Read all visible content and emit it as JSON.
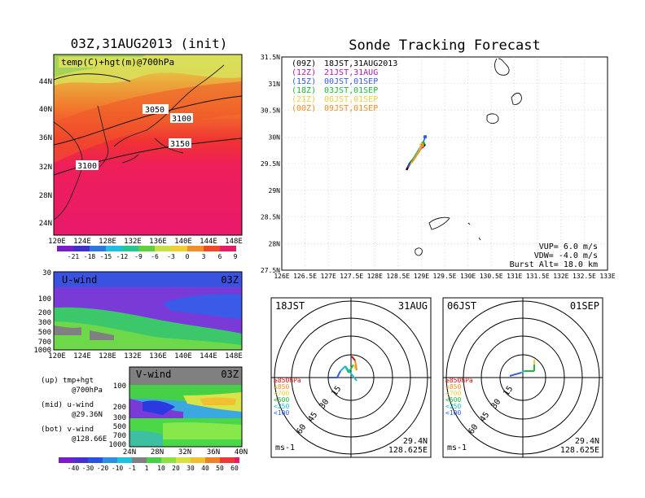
{
  "top_left": {
    "title": "03Z,31AUG2013 (init)",
    "label": "temp(C)+hgt(m)@700hPa",
    "xticks": [
      "120E",
      "124E",
      "128E",
      "132E",
      "136E",
      "140E",
      "144E",
      "148E"
    ],
    "yticks": [
      "24N",
      "28N",
      "32N",
      "36N",
      "40N",
      "44N"
    ],
    "contours": [
      "3050",
      "3100",
      "3150",
      "3100"
    ],
    "colorbar": [
      "-21",
      "-18",
      "-15",
      "-12",
      "-9",
      "-6",
      "-3",
      "0",
      "3",
      "6",
      "9"
    ]
  },
  "uwind": {
    "label": "U-wind",
    "time": "03Z",
    "yticks": [
      "30",
      "100",
      "200",
      "300",
      "500",
      "700",
      "1000"
    ],
    "xticks": [
      "120E",
      "124E",
      "128E",
      "132E",
      "136E",
      "140E",
      "144E",
      "148E"
    ]
  },
  "vwind": {
    "label": "V-wind",
    "time": "03Z",
    "yticks": [
      "200",
      "300",
      "500",
      "700",
      "1000"
    ],
    "yticks_top": "100",
    "xticks": [
      "24N",
      "28N",
      "32N",
      "36N",
      "40N"
    ],
    "colorbar": [
      "-40",
      "-30",
      "-20",
      "-10",
      "-1",
      "1",
      "10",
      "20",
      "30",
      "40",
      "50",
      "60"
    ]
  },
  "legend_text": {
    "up": "(up) tmp+hgt",
    "up2": "@700hPa",
    "mid": "(mid) u-wind",
    "mid2": "@29.36N",
    "bot": "(bot) v-wind",
    "bot2": "@128.66E"
  },
  "track": {
    "title": "Sonde Tracking Forecast",
    "xticks": [
      "126E",
      "126.5E",
      "127E",
      "127.5E",
      "128E",
      "128.5E",
      "129E",
      "129.5E",
      "130E",
      "130.5E",
      "131E",
      "131.5E",
      "132E",
      "132.5E",
      "133E"
    ],
    "yticks": [
      "31.5N",
      "31N",
      "30.5N",
      "30N",
      "29.5N",
      "29N",
      "28.5N",
      "28N",
      "27.5N"
    ],
    "legend": [
      {
        "tag": "(09Z)",
        "text": "18JST,31AUG2013",
        "color": "#000000"
      },
      {
        "tag": "(12Z)",
        "text": "21JST,31AUG",
        "color": "#b01aa6"
      },
      {
        "tag": "(15Z)",
        "text": "00JST,01SEP",
        "color": "#3a5cdc"
      },
      {
        "tag": "(18Z)",
        "text": "03JST,01SEP",
        "color": "#1fb83a"
      },
      {
        "tag": "(21Z)",
        "text": "06JST,01SEP",
        "color": "#e8d040"
      },
      {
        "tag": "(00Z)",
        "text": "09JST,01SEP",
        "color": "#ef8c1e"
      }
    ],
    "info1": "VUP=  6.0 m/s",
    "info2": "VDW= -4.0 m/s",
    "info3": "Burst Alt= 18.0 km"
  },
  "polar_left": {
    "tl": "18JST",
    "tr": "31AUG",
    "lat": "29.4N",
    "lon": "128.625E",
    "unit": "ms-1"
  },
  "polar_right": {
    "tl": "06JST",
    "tr": "01SEP",
    "lat": "29.4N",
    "lon": "128.625E",
    "unit": "ms-1"
  },
  "polar_levels": [
    {
      "text": "≥850hPa",
      "color": "#d01010"
    },
    {
      "text": "<850",
      "color": "#ef8c1e"
    },
    {
      "text": "<700",
      "color": "#e8d040"
    },
    {
      "text": "<500",
      "color": "#1fb83a"
    },
    {
      "text": "<250",
      "color": "#23b8c8"
    },
    {
      "text": "<100",
      "color": "#3a5cdc"
    }
  ],
  "polar_rings": [
    "15",
    "30",
    "45",
    "60"
  ],
  "chart_data": [
    {
      "type": "line",
      "title": "Sonde Tracking Forecast",
      "xlim": [
        126,
        133
      ],
      "ylim": [
        27.5,
        31.5
      ],
      "series": [
        {
          "name": "18JST,31AUG2013",
          "x": [
            128.68,
            128.75,
            128.86,
            128.93,
            129.05
          ],
          "y": [
            29.38,
            29.5,
            29.62,
            29.72,
            29.85
          ]
        },
        {
          "name": "21JST,31AUG",
          "x": [
            128.7,
            128.82,
            128.95,
            129.02
          ],
          "y": [
            29.42,
            29.56,
            29.72,
            29.82
          ]
        },
        {
          "name": "00JST,01SEP",
          "x": [
            128.72,
            128.9,
            129.05,
            129.08
          ],
          "y": [
            29.45,
            29.7,
            29.92,
            30.0
          ]
        },
        {
          "name": "03JST,01SEP",
          "x": [
            128.75,
            128.92,
            129.04
          ],
          "y": [
            29.48,
            29.72,
            29.88
          ]
        },
        {
          "name": "06JST,01SEP",
          "x": [
            128.78,
            128.95,
            129.0
          ],
          "y": [
            29.5,
            29.74,
            29.85
          ]
        },
        {
          "name": "09JST,01SEP",
          "x": [
            128.8,
            128.98,
            129.02
          ],
          "y": [
            29.52,
            29.76,
            29.84
          ]
        }
      ]
    }
  ]
}
